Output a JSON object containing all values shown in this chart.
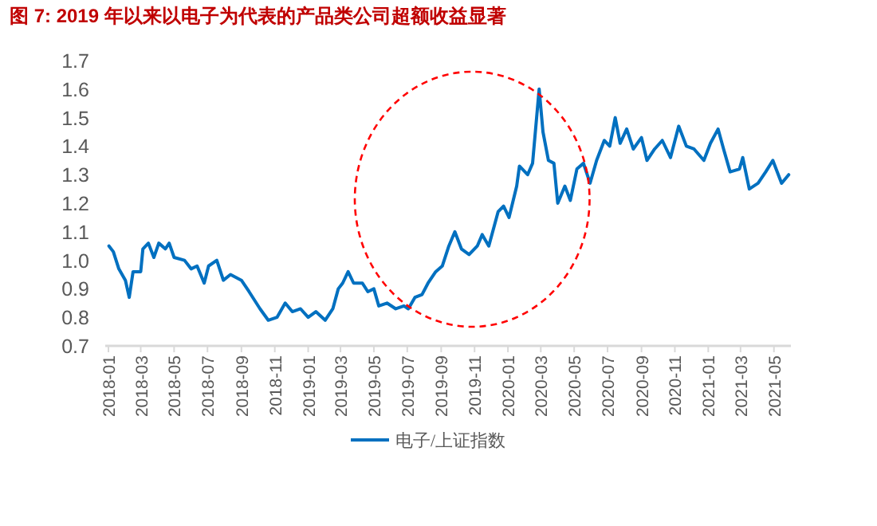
{
  "chart_data": {
    "type": "line",
    "title": "图 7: 2019 年以来以电子为代表的产品类公司超额收益显著",
    "x": [
      "2018-01-02",
      "2018-01-10",
      "2018-01-20",
      "2018-02-01",
      "2018-02-08",
      "2018-02-15",
      "2018-03-01",
      "2018-03-05",
      "2018-03-15",
      "2018-03-25",
      "2018-04-03",
      "2018-04-15",
      "2018-04-22",
      "2018-05-01",
      "2018-05-20",
      "2018-06-01",
      "2018-06-12",
      "2018-06-25",
      "2018-07-03",
      "2018-07-18",
      "2018-07-30",
      "2018-08-12",
      "2018-09-01",
      "2018-09-15",
      "2018-10-05",
      "2018-10-20",
      "2018-11-05",
      "2018-11-20",
      "2018-12-03",
      "2018-12-18",
      "2019-01-01",
      "2019-01-15",
      "2019-02-01",
      "2019-02-15",
      "2019-02-25",
      "2019-03-05",
      "2019-03-15",
      "2019-03-25",
      "2019-04-10",
      "2019-04-20",
      "2019-05-01",
      "2019-05-10",
      "2019-05-25",
      "2019-06-10",
      "2019-06-25",
      "2019-07-03",
      "2019-07-15",
      "2019-07-28",
      "2019-08-08",
      "2019-08-22",
      "2019-09-03",
      "2019-09-15",
      "2019-09-26",
      "2019-10-08",
      "2019-10-22",
      "2019-11-06",
      "2019-11-15",
      "2019-11-27",
      "2019-12-14",
      "2019-12-24",
      "2020-01-03",
      "2020-01-17",
      "2020-01-22",
      "2020-02-06",
      "2020-02-15",
      "2020-02-27",
      "2020-03-05",
      "2020-03-15",
      "2020-03-25",
      "2020-04-01",
      "2020-04-14",
      "2020-04-24",
      "2020-05-06",
      "2020-05-18",
      "2020-05-30",
      "2020-06-11",
      "2020-06-25",
      "2020-07-05",
      "2020-07-15",
      "2020-07-24",
      "2020-08-05",
      "2020-08-17",
      "2020-09-01",
      "2020-09-11",
      "2020-09-25",
      "2020-10-09",
      "2020-10-24",
      "2020-11-08",
      "2020-11-22",
      "2020-12-06",
      "2020-12-24",
      "2021-01-05",
      "2021-01-19",
      "2021-01-29",
      "2021-02-10",
      "2021-02-27",
      "2021-03-05",
      "2021-03-17",
      "2021-04-02",
      "2021-04-16",
      "2021-04-29",
      "2021-05-15",
      "2021-05-28"
    ],
    "series": [
      {
        "name": "电子/上证指数",
        "color": "#0070c0",
        "values": [
          1.05,
          1.03,
          0.97,
          0.93,
          0.87,
          0.96,
          0.96,
          1.04,
          1.06,
          1.01,
          1.06,
          1.04,
          1.06,
          1.01,
          1.0,
          0.97,
          0.98,
          0.92,
          0.98,
          1.0,
          0.93,
          0.95,
          0.93,
          0.89,
          0.83,
          0.79,
          0.8,
          0.85,
          0.82,
          0.83,
          0.8,
          0.82,
          0.79,
          0.83,
          0.9,
          0.92,
          0.96,
          0.92,
          0.92,
          0.89,
          0.9,
          0.84,
          0.85,
          0.83,
          0.84,
          0.83,
          0.87,
          0.88,
          0.92,
          0.96,
          0.98,
          1.05,
          1.1,
          1.04,
          1.02,
          1.05,
          1.09,
          1.05,
          1.17,
          1.19,
          1.15,
          1.26,
          1.33,
          1.3,
          1.34,
          1.6,
          1.45,
          1.35,
          1.34,
          1.2,
          1.26,
          1.21,
          1.32,
          1.34,
          1.27,
          1.35,
          1.42,
          1.4,
          1.5,
          1.41,
          1.46,
          1.39,
          1.43,
          1.35,
          1.39,
          1.42,
          1.36,
          1.47,
          1.4,
          1.39,
          1.35,
          1.41,
          1.46,
          1.39,
          1.31,
          1.32,
          1.36,
          1.25,
          1.27,
          1.31,
          1.35,
          1.27,
          1.3
        ]
      }
    ],
    "xlim": [
      "2018-01",
      "2021-06"
    ],
    "xticks": [
      "2018-01",
      "2018-03",
      "2018-05",
      "2018-07",
      "2018-09",
      "2018-11",
      "2019-01",
      "2019-03",
      "2019-05",
      "2019-07",
      "2019-09",
      "2019-11",
      "2020-01",
      "2020-03",
      "2020-05",
      "2020-07",
      "2020-09",
      "2020-11",
      "2021-01",
      "2021-03",
      "2021-05"
    ],
    "ylim": [
      0.7,
      1.7
    ],
    "yticks": [
      0.7,
      0.8,
      0.9,
      {
        "value": 1.0,
        "label": "1.0"
      },
      1.1,
      1.2,
      1.3,
      1.4,
      1.5,
      1.6,
      1.7
    ],
    "legend": "bottom",
    "grid": false,
    "marker": "none",
    "line_style": "solid"
  }
}
